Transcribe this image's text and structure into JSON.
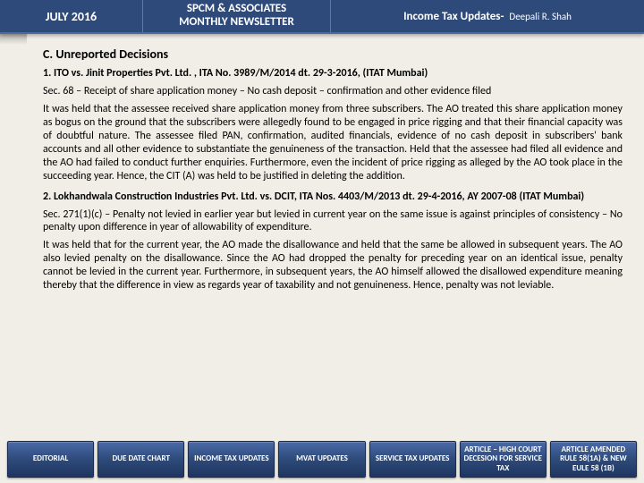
{
  "header": {
    "date": "JULY 2016",
    "org_line1": "SPCM & ASSOCIATES",
    "org_line2": "MONTHLY NEWSLETTER",
    "topic": "Income Tax Updates",
    "separator": " - ",
    "author": "Deepali R. Shah"
  },
  "section_title": "C. Unreported Decisions",
  "case1": {
    "title": "1. ITO vs. Jinit Properties Pvt. Ltd. , ITA No. 3989/M/2014 dt. 29-3-2016, (ITAT Mumbai)",
    "sec": "Sec. 68 – Receipt of share application money – No cash deposit – confirmation and other evidence filed",
    "para": "It was held that the assessee received share application money from three subscribers. The AO treated this share application money as bogus on the ground that the subscribers were allegedly found to be engaged in price rigging and that their financial capacity was of doubtful nature. The assessee filed PAN, confirmation, audited financials, evidence of no cash deposit in subscribers' bank accounts and all other evidence to substantiate the genuineness of the transaction. Held that the assessee had filed all evidence and the AO had failed to conduct further enquiries. Furthermore, even the incident of price rigging as alleged by the AO took place in the succeeding year. Hence, the CIT (A) was held to be justified in deleting the addition."
  },
  "case2": {
    "title": "2. Lokhandwala Construction Industries Pvt. Ltd. vs. DCIT, ITA Nos. 4403/M/2013 dt. 29-4-2016, AY 2007-08 (ITAT Mumbai)",
    "sec": "Sec. 271(1)(c) – Penalty not levied in earlier year but levied in current year on the same issue is against principles of consistency – No penalty upon difference in year of allowability of expenditure.",
    "para": "It was held that for the current year, the AO made the disallowance and held that the same be allowed in subsequent years. The AO also levied penalty on the disallowance. Since the AO had dropped the penalty for preceding year on an identical issue, penalty cannot be levied in the current year. Furthermore, in subsequent years, the AO himself allowed the disallowed expenditure meaning thereby that the difference in view as regards year of taxability and not genuineness. Hence, penalty was not leviable."
  },
  "nav": [
    "EDITORIAL",
    "DUE DATE CHART",
    "INCOME TAX UPDATES",
    "MVAT UPDATES",
    "SERVICE TAX UPDATES",
    "ARTICLE – HIGH COURT DECESION FOR SERVICE TAX",
    "ARTICLE AMENDED RULE 58(1A) & NEW EULE 58 (1B)"
  ],
  "colors": {
    "header_bg": "#2e4a7a",
    "nav_bg_top": "#4a6aa8",
    "nav_bg_bottom": "#1e3560",
    "body_bg": "#f0eee6"
  }
}
